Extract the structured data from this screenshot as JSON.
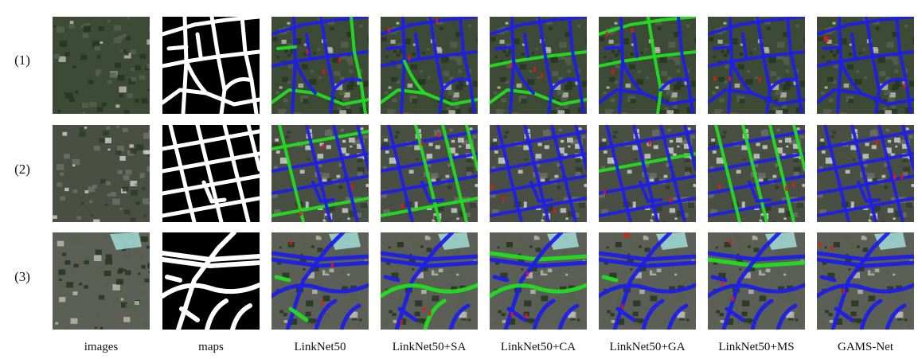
{
  "rows": [
    {
      "label": "(1)"
    },
    {
      "label": "(2)"
    },
    {
      "label": "(3)"
    }
  ],
  "columns": [
    {
      "label": "images"
    },
    {
      "label": "maps"
    },
    {
      "label": "LinkNet50"
    },
    {
      "label": "LinkNet50+SA"
    },
    {
      "label": "LinkNet50+CA"
    },
    {
      "label": "LinkNet50+GA"
    },
    {
      "label": "LinkNet50+MS"
    },
    {
      "label": "GAMS-Net"
    }
  ],
  "colors": {
    "true_positive": "#1f1fe8",
    "false_negative": "#22dd22",
    "false_positive": "#e01a1a",
    "mask_road": "#ffffff",
    "mask_bg": "#000000"
  }
}
